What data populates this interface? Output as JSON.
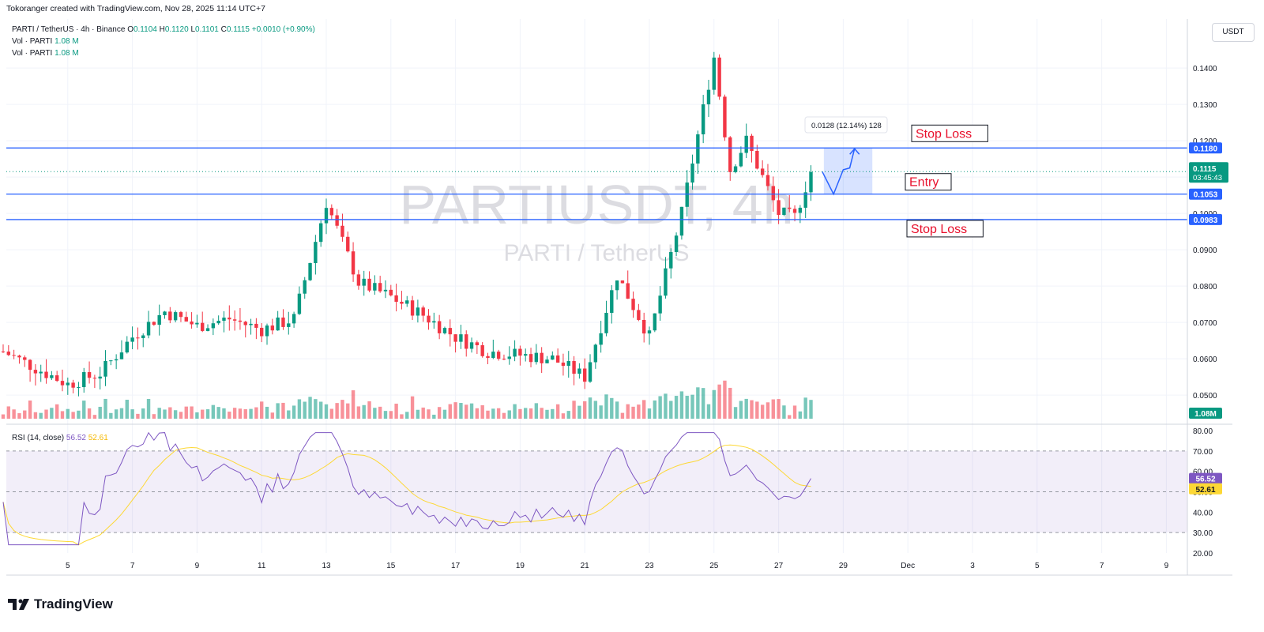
{
  "header": {
    "credit": "Tokoranger created with TradingView.com, Nov 28, 2025 11:14 UTC+7"
  },
  "legend": {
    "symbol": "PARTI / TetherUS · 4h · Binance",
    "ohlc": {
      "o_label": "O",
      "o": "0.1104",
      "h_label": "H",
      "h": "0.1120",
      "l_label": "L",
      "l": "0.1101",
      "c_label": "C",
      "c": "0.1115",
      "change": "+0.0010 (+0.90%)"
    },
    "vol_rows": [
      {
        "label": "Vol · PARTI",
        "value": "1.08 M"
      },
      {
        "label": "Vol · PARTI",
        "value": "1.08 M"
      }
    ]
  },
  "currency": "USDT",
  "watermark": {
    "main": "PARTIUSDT, 4h",
    "sub": "PARTI / TetherUS"
  },
  "annotations": {
    "measure_label": "0.0128 (12.14%) 128",
    "stop_loss_top": "Stop Loss",
    "entry": "Entry",
    "stop_loss_bottom": "Stop Loss"
  },
  "price_badges": {
    "sl_top": "0.1180",
    "current_price": "0.1115",
    "countdown": "03:45:43",
    "entry": "0.1053",
    "sl_bottom": "0.0983",
    "volume": "1.08M"
  },
  "rsi": {
    "label": "RSI (14, close)",
    "value": "56.52",
    "ma_value": "52.61",
    "axis_ticks": [
      "80.00",
      "70.00",
      "60.00",
      "50.00",
      "40.00",
      "30.00",
      "20.00"
    ]
  },
  "brand": "TradingView",
  "colors": {
    "up": "#089981",
    "down": "#f23645",
    "level_line": "#2962ff",
    "label_text": "#e8102c",
    "rsi_line": "#7e57c2",
    "rsi_ma": "#fdd835"
  },
  "chart_data": {
    "type": "candlestick",
    "symbol": "PARTIUSDT",
    "timeframe": "4h",
    "price_axis": {
      "ticks": [
        "0.1400",
        "0.1300",
        "0.1200",
        "0.1100",
        "0.1000",
        "0.0900",
        "0.0800",
        "0.0700",
        "0.0600",
        "0.0500"
      ],
      "range": [
        0.0435,
        0.1535
      ]
    },
    "x_axis": {
      "ticks": [
        "5",
        "7",
        "9",
        "11",
        "13",
        "15",
        "17",
        "19",
        "21",
        "23",
        "25",
        "27",
        "29",
        "Dec",
        "3",
        "5",
        "7",
        "9"
      ]
    },
    "levels": [
      {
        "name": "Stop Loss",
        "price": 0.118
      },
      {
        "name": "Entry",
        "price": 0.1053
      },
      {
        "name": "Stop Loss",
        "price": 0.0983
      }
    ],
    "price_checkpoints": [
      {
        "date": "Nov 3",
        "close": 0.062
      },
      {
        "date": "Nov 5",
        "close": 0.053
      },
      {
        "date": "Nov 6",
        "close": 0.056
      },
      {
        "date": "Nov 7",
        "close": 0.066
      },
      {
        "date": "Nov 8",
        "close": 0.073
      },
      {
        "date": "Nov 9",
        "close": 0.069
      },
      {
        "date": "Nov 10",
        "close": 0.071
      },
      {
        "date": "Nov 11",
        "close": 0.068
      },
      {
        "date": "Nov 12",
        "close": 0.071
      },
      {
        "date": "Nov 13",
        "close": 0.103
      },
      {
        "date": "Nov 14",
        "close": 0.081
      },
      {
        "date": "Nov 15",
        "close": 0.077
      },
      {
        "date": "Nov 16",
        "close": 0.072
      },
      {
        "date": "Nov 17",
        "close": 0.066
      },
      {
        "date": "Nov 18",
        "close": 0.062
      },
      {
        "date": "Nov 19",
        "close": 0.061
      },
      {
        "date": "Nov 20",
        "close": 0.06
      },
      {
        "date": "Nov 21",
        "close": 0.055
      },
      {
        "date": "Nov 22",
        "close": 0.083
      },
      {
        "date": "Nov 23",
        "close": 0.066
      },
      {
        "date": "Nov 24",
        "close": 0.1
      },
      {
        "date": "Nov 25",
        "close": 0.143
      },
      {
        "date": "Nov 25.5",
        "close": 0.112
      },
      {
        "date": "Nov 26",
        "close": 0.12
      },
      {
        "date": "Nov 27",
        "close": 0.1
      },
      {
        "date": "Nov 27.5",
        "close": 0.099
      },
      {
        "date": "Nov 28",
        "close": 0.1115
      }
    ],
    "volume_note": "volume histogram bars beneath price, latest 1.08M",
    "rsi": {
      "period": 14,
      "last": 56.52,
      "ma_last": 52.61,
      "band": [
        30,
        70
      ],
      "range": [
        20,
        80
      ]
    }
  }
}
